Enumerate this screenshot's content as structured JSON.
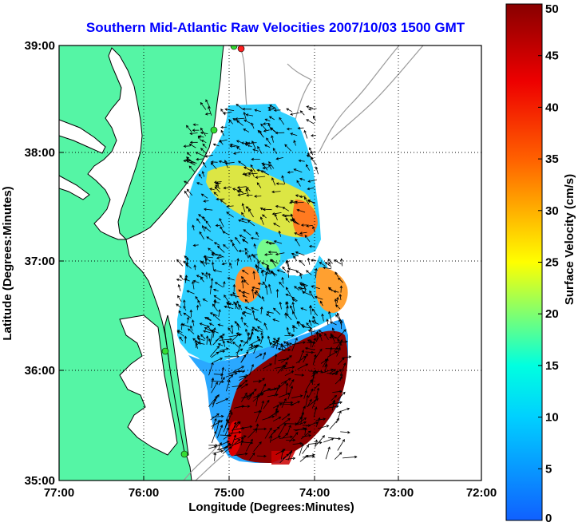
{
  "title": "Southern Mid-Atlantic Raw Velocities 2007/10/03 1500 GMT",
  "map": {
    "xlabel": "Longitude (Degrees:Minutes)",
    "ylabel": "Latitude (Degrees:Minutes)",
    "lon_range": [
      -77,
      -72
    ],
    "lat_range": [
      35,
      39
    ],
    "x_ticks": [
      "77:00",
      "76:00",
      "75:00",
      "74:00",
      "73:00",
      "72:00"
    ],
    "y_ticks": [
      "39:00",
      "38:00",
      "37:00",
      "36:00",
      "35:00"
    ],
    "grid": "dotted",
    "land_color": "#55f5a5",
    "coastline_color": "#000000",
    "bathymetry_color": "#9a9a9a",
    "site_marker_color": "#33dd33",
    "site_marker_red_color": "#ff2020",
    "vector_color": "#000000"
  },
  "colorbar": {
    "label": "Surface Velocity (cm/s)",
    "min": 0,
    "max": 50,
    "ticks": [
      "0",
      "5",
      "10",
      "15",
      "20",
      "25",
      "30",
      "35",
      "40",
      "45",
      "50"
    ],
    "colormap": "jet"
  }
}
